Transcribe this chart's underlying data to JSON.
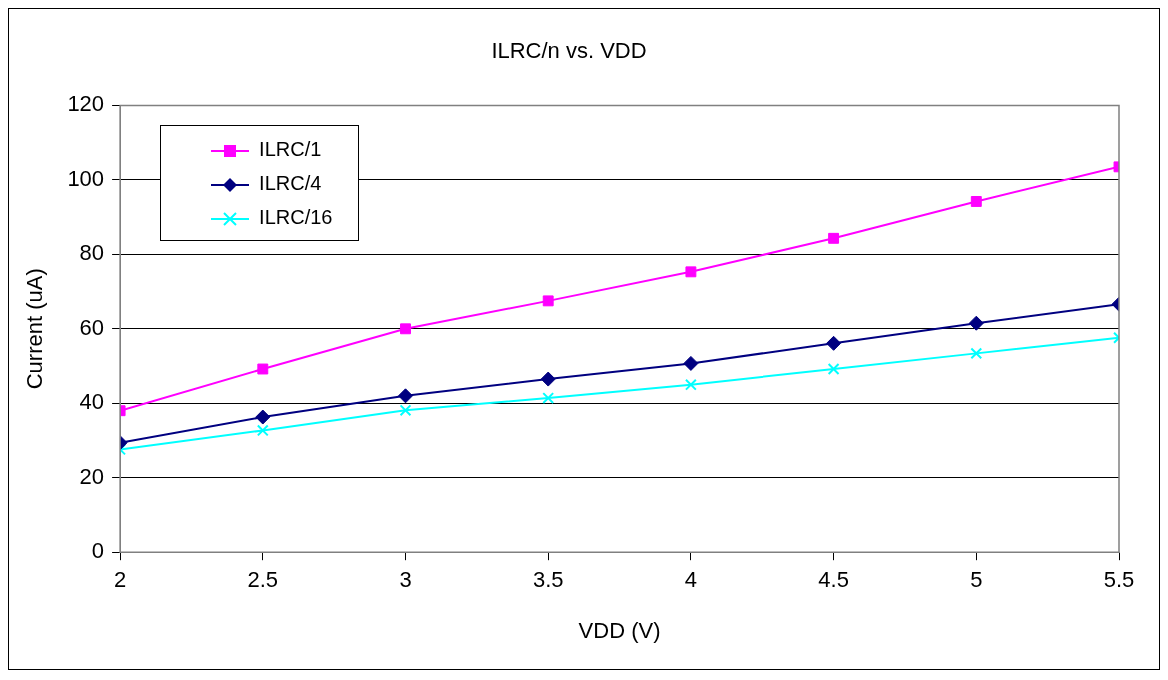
{
  "chart_data": {
    "type": "line",
    "title": "ILRC/n vs. VDD",
    "xlabel": "VDD (V)",
    "ylabel": "Current (uA)",
    "x": [
      2,
      2.5,
      3,
      3.5,
      4,
      4.5,
      5,
      5.5
    ],
    "series": [
      {
        "name": "ILRC/1",
        "color": "#ff00ff",
        "marker": "square",
        "values": [
          38,
          49.2,
          60,
          67.5,
          75.3,
          84.3,
          94.2,
          103.5
        ]
      },
      {
        "name": "ILRC/4",
        "color": "#000080",
        "marker": "diamond",
        "values": [
          29.4,
          36.3,
          42,
          46.5,
          50.7,
          56.1,
          61.5,
          66.6
        ]
      },
      {
        "name": "ILRC/16",
        "color": "#00ffff",
        "marker": "cross",
        "values": [
          27.6,
          32.7,
          38.1,
          41.4,
          45,
          49.2,
          53.4,
          57.6
        ]
      }
    ],
    "xlim": [
      2,
      5.5
    ],
    "xticks": [
      2,
      2.5,
      3,
      3.5,
      4,
      4.5,
      5,
      5.5
    ],
    "ylim": [
      0,
      120
    ],
    "yticks": [
      0,
      20,
      40,
      60,
      80,
      100,
      120
    ],
    "grid": "y",
    "legend": "top left",
    "line_style": "solid"
  }
}
